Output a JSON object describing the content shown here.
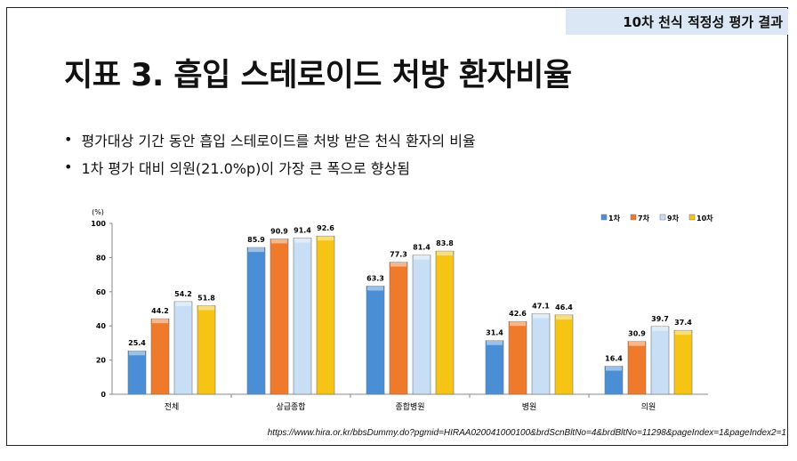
{
  "header": {
    "badge": "10차 천식 적정성 평가 결과"
  },
  "title": "지표 3. 흡입 스테로이드 처방 환자비율",
  "bullets": [
    "평가대상 기간 동안 흡입 스테로이드를 처방 받은 천식 환자의 비율",
    "1차 평가 대비 의원(21.0%p)이 가장 큰 폭으로 향상됨"
  ],
  "source_url": "https://www.hira.or.kr/bbsDummy.do?pgmid=HIRAA020041000100&brdScnBltNo=4&brdBltNo=11298&pageIndex=1&pageIndex2=1",
  "chart_data": {
    "type": "bar",
    "ylabel": "(%)",
    "ylim": [
      0,
      100
    ],
    "yticks": [
      0,
      20,
      40,
      60,
      80,
      100
    ],
    "categories": [
      "전체",
      "상급종합",
      "종합병원",
      "병원",
      "의원"
    ],
    "legend_position": "top-right",
    "grid": false,
    "series": [
      {
        "name": "1차",
        "color": "#4a8fd6",
        "values": [
          25.4,
          85.9,
          63.3,
          31.4,
          16.4
        ]
      },
      {
        "name": "7차",
        "color": "#f07a2c",
        "values": [
          44.2,
          90.9,
          77.3,
          42.6,
          30.9
        ]
      },
      {
        "name": "9차",
        "color": "#c7def5",
        "values": [
          54.2,
          91.4,
          81.4,
          47.1,
          39.7
        ]
      },
      {
        "name": "10차",
        "color": "#f5c414",
        "values": [
          51.8,
          92.6,
          83.8,
          46.4,
          37.4
        ]
      }
    ]
  }
}
